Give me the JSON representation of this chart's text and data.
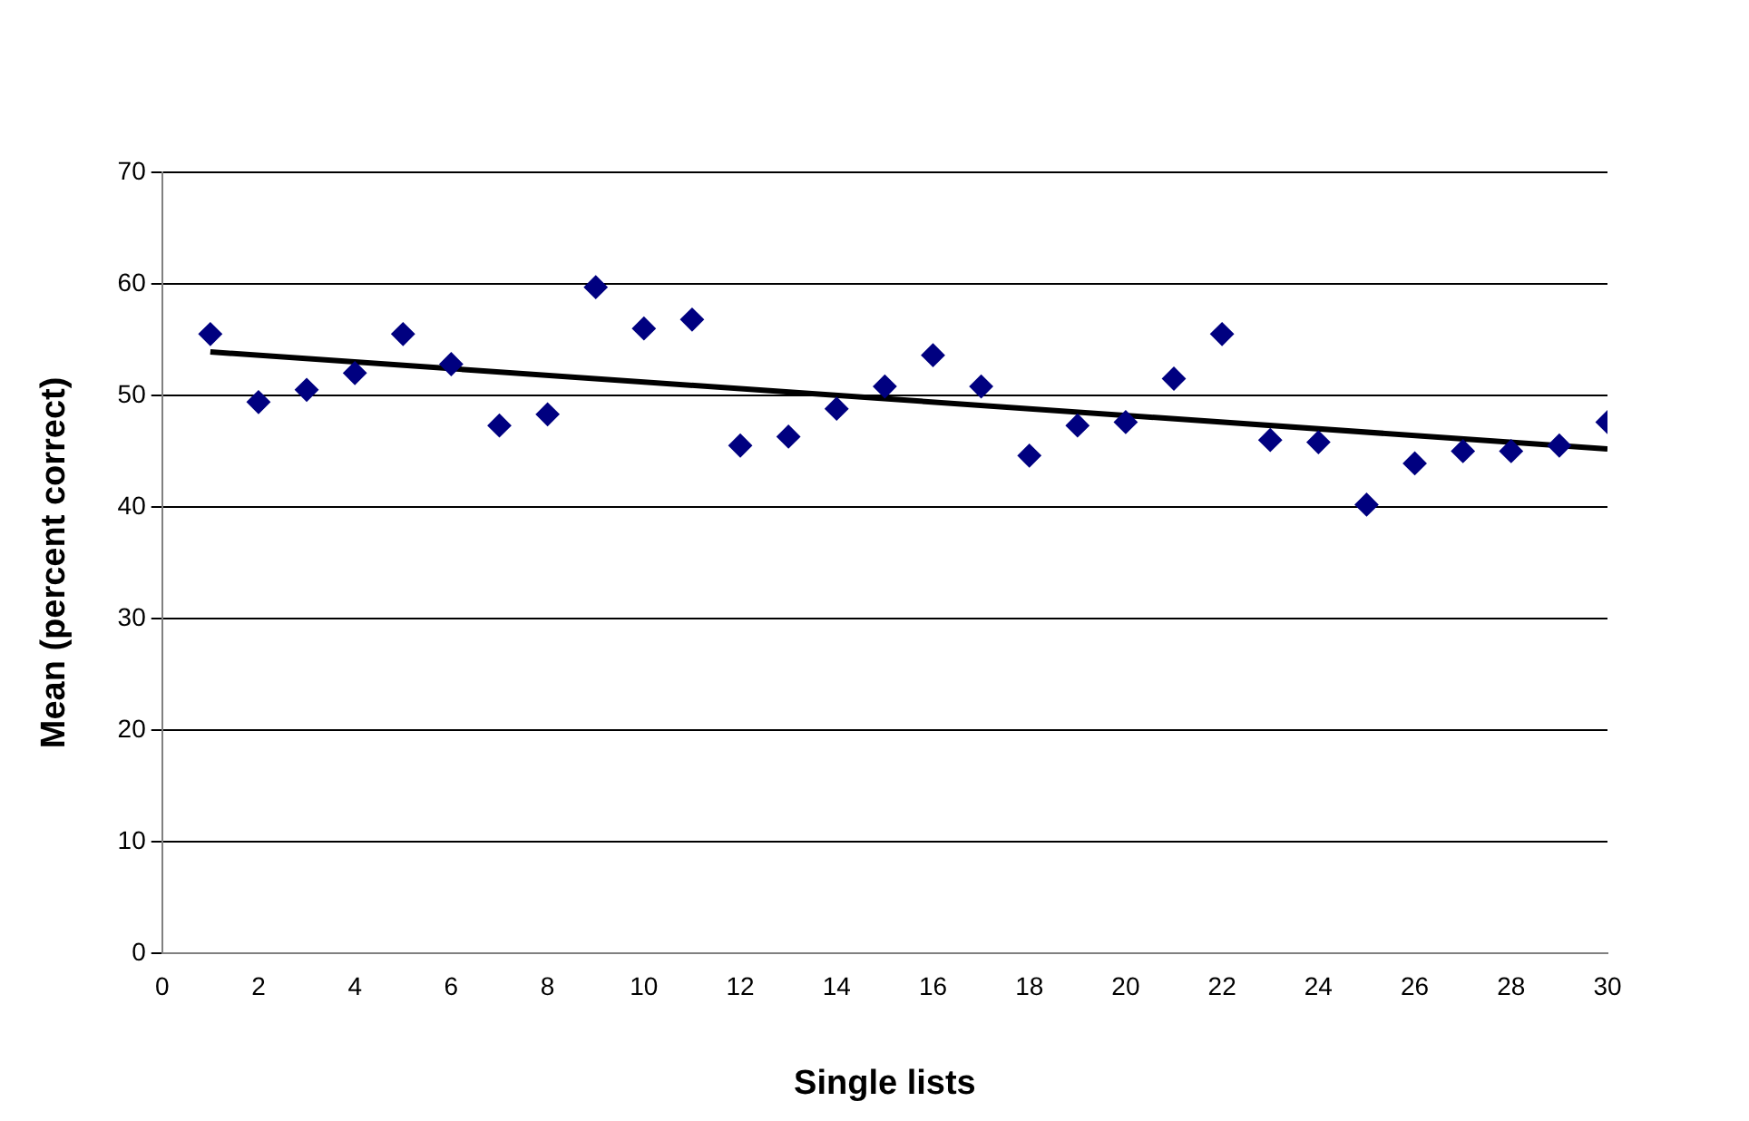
{
  "chart_data": {
    "type": "scatter",
    "xlabel": "Single lists",
    "ylabel": "Mean (percent correct)",
    "x": [
      1,
      2,
      3,
      4,
      5,
      6,
      7,
      8,
      9,
      10,
      11,
      12,
      13,
      14,
      15,
      16,
      17,
      18,
      19,
      20,
      21,
      22,
      23,
      24,
      25,
      26,
      27,
      28,
      29,
      30
    ],
    "series": [
      {
        "color": "#000080",
        "marker": "diamond",
        "values": [
          55.5,
          49.4,
          50.5,
          52,
          55.5,
          52.8,
          47.3,
          48.3,
          59.7,
          56,
          56.8,
          45.5,
          46.3,
          48.8,
          50.8,
          53.6,
          50.8,
          44.6,
          47.3,
          47.6,
          51.5,
          55.5,
          46,
          45.8,
          40.2,
          43.9,
          45,
          45,
          45.5,
          47.6
        ]
      },
      {
        "type": "line",
        "color": "#000000",
        "marker": "none",
        "line_style": "solid",
        "x": [
          1,
          30
        ],
        "values": [
          53.9,
          45.2
        ]
      }
    ],
    "xlim": [
      0,
      30
    ],
    "xticks": [
      0,
      2,
      4,
      6,
      8,
      10,
      12,
      14,
      16,
      18,
      20,
      22,
      24,
      26,
      28,
      30
    ],
    "ylim": [
      0,
      70
    ],
    "yticks": [
      0,
      10,
      20,
      30,
      40,
      50,
      60,
      70
    ],
    "grid": "y",
    "legend": false
  }
}
